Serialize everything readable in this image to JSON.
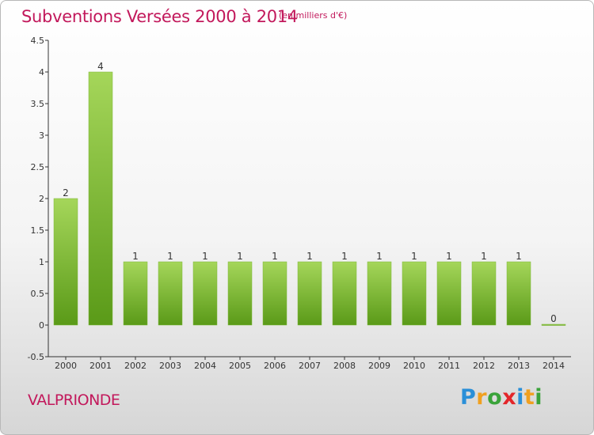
{
  "header": {
    "title": "Subventions Versées 2000 à 2014",
    "unit": "(en milliers d'€)"
  },
  "footer": {
    "place": "VALPRIONDE",
    "logo": "Proxiti"
  },
  "colors": {
    "title": "#c2185b",
    "bar_top": "#a5d65a",
    "bar_bottom": "#5a9a18",
    "axis": "#333333"
  },
  "chart_data": {
    "type": "bar",
    "title": "Subventions Versées 2000 à 2014",
    "subtitle": "(en milliers d'€)",
    "categories": [
      "2000",
      "2001",
      "2002",
      "2003",
      "2004",
      "2005",
      "2006",
      "2007",
      "2008",
      "2009",
      "2010",
      "2011",
      "2012",
      "2013",
      "2014"
    ],
    "values": [
      2,
      4,
      1,
      1,
      1,
      1,
      1,
      1,
      1,
      1,
      1,
      1,
      1,
      1,
      0
    ],
    "value_labels": [
      "2",
      "4",
      "1",
      "1",
      "1",
      "1",
      "1",
      "1",
      "1",
      "1",
      "1",
      "1",
      "1",
      "1",
      "0"
    ],
    "ylim": [
      -0.5,
      4.5
    ],
    "yticks": [
      -0.5,
      0,
      0.5,
      1,
      1.5,
      2,
      2.5,
      3,
      3.5,
      4,
      4.5
    ],
    "ytick_labels": [
      "-0.5",
      "0",
      "0.5",
      "1",
      "1.5",
      "2",
      "2.5",
      "3",
      "3.5",
      "4",
      "4.5"
    ],
    "xlabel": "",
    "ylabel": "",
    "grid": false,
    "legend": false
  }
}
